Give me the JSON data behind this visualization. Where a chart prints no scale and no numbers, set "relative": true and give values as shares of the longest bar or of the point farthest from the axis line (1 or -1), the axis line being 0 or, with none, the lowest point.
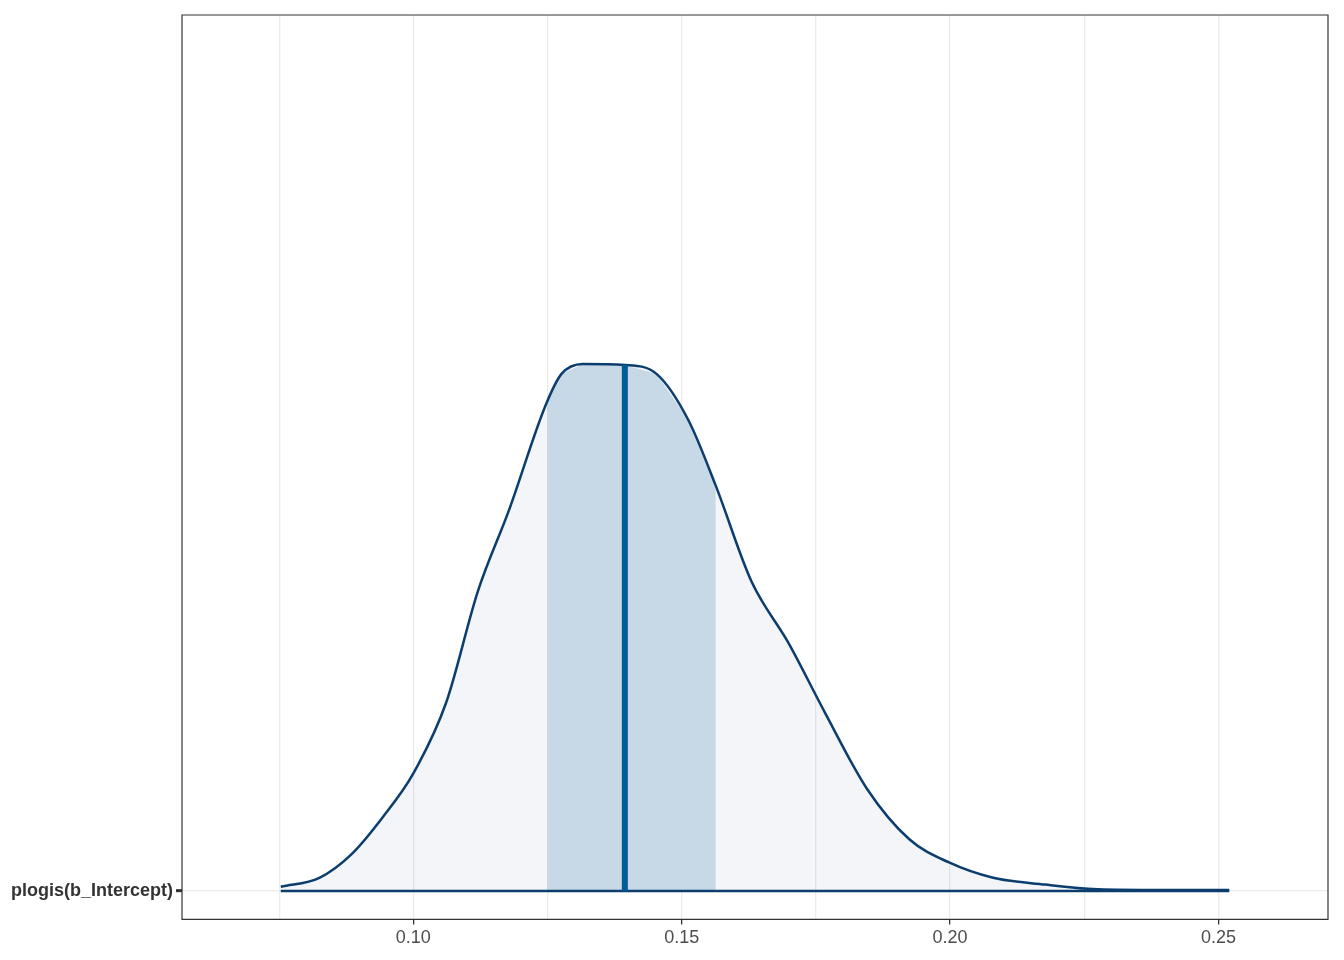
{
  "chart_data": {
    "type": "area",
    "relative": true,
    "legend": false,
    "grid": true,
    "xlim": [
      0.0569,
      0.2704
    ],
    "xticks": [
      {
        "value": 0.075,
        "label": null
      },
      {
        "value": 0.1,
        "label": "0.10"
      },
      {
        "value": 0.125,
        "label": null
      },
      {
        "value": 0.15,
        "label": "0.15"
      },
      {
        "value": 0.175,
        "label": null
      },
      {
        "value": 0.2,
        "label": "0.20"
      },
      {
        "value": 0.225,
        "label": null
      },
      {
        "value": 0.25,
        "label": "0.25"
      }
    ],
    "series": [
      {
        "name": "plogis(b_Intercept)",
        "color": "#0b3d6e",
        "x": [
          0.0753,
          0.0825,
          0.0884,
          0.0943,
          0.1,
          0.1061,
          0.112,
          0.1178,
          0.1247,
          0.1276,
          0.1316,
          0.1394,
          0.1453,
          0.1512,
          0.1563,
          0.163,
          0.1698,
          0.1767,
          0.1845,
          0.1924,
          0.1998,
          0.208,
          0.2178,
          0.2257,
          0.2355,
          0.252
        ],
        "values": [
          0.008,
          0.025,
          0.069,
          0.14,
          0.223,
          0.357,
          0.568,
          0.722,
          0.923,
          0.981,
          1,
          0.998,
          0.981,
          0.894,
          0.77,
          0.587,
          0.472,
          0.338,
          0.194,
          0.098,
          0.054,
          0.025,
          0.012,
          0.004,
          0.002,
          0.002
        ]
      }
    ],
    "bands": [
      {
        "axis": "x",
        "from": 0.1249,
        "to": 0.1563,
        "color": "#d1e1ec"
      }
    ],
    "ref_lines": [
      {
        "axis": "x",
        "value": 0.1394,
        "color": "#005b96"
      }
    ]
  }
}
